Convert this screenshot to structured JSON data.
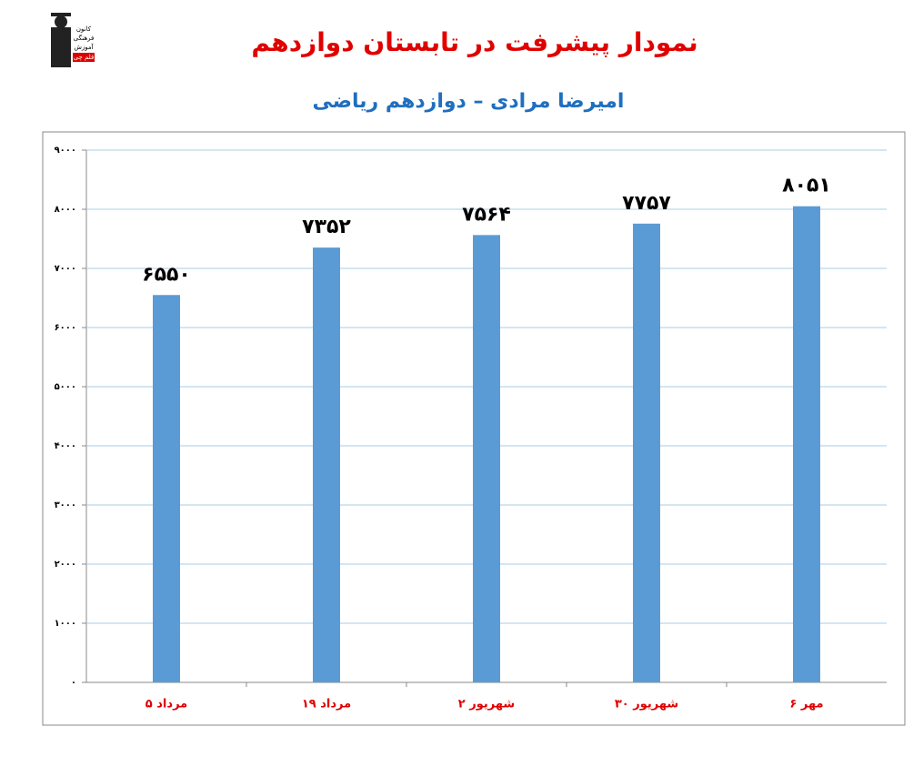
{
  "logo": {
    "lines": [
      "کانون",
      "فرهنگی",
      "آموزش",
      "قلم چی"
    ]
  },
  "chart_data": {
    "type": "bar",
    "title": "نمودار پیشرفت در تابستان دوازدهم",
    "subtitle": "امیرضا مرادی – دوازدهم ریاضی",
    "categories": [
      "۵ مرداد",
      "۱۹ مرداد",
      "۲ شهریور",
      "۳۰ شهریور",
      "۶ مهر"
    ],
    "values": [
      6550,
      7352,
      7564,
      7757,
      8051
    ],
    "value_labels": [
      "۶۵۵۰",
      "۷۳۵۲",
      "۷۵۶۴",
      "۷۷۵۷",
      "۸۰۵۱"
    ],
    "color": "#5b9bd5",
    "ylim": [
      0,
      9000
    ],
    "yticks": [
      {
        "value": 0,
        "label": "۰"
      },
      {
        "value": 1000,
        "label": "۱۰۰۰"
      },
      {
        "value": 2000,
        "label": "۲۰۰۰"
      },
      {
        "value": 3000,
        "label": "۳۰۰۰"
      },
      {
        "value": 4000,
        "label": "۴۰۰۰"
      },
      {
        "value": 5000,
        "label": "۵۰۰۰"
      },
      {
        "value": 6000,
        "label": "۶۰۰۰"
      },
      {
        "value": 7000,
        "label": "۷۰۰۰"
      },
      {
        "value": 8000,
        "label": "۸۰۰۰"
      },
      {
        "value": 9000,
        "label": "۹۰۰۰"
      }
    ],
    "grid": true
  }
}
